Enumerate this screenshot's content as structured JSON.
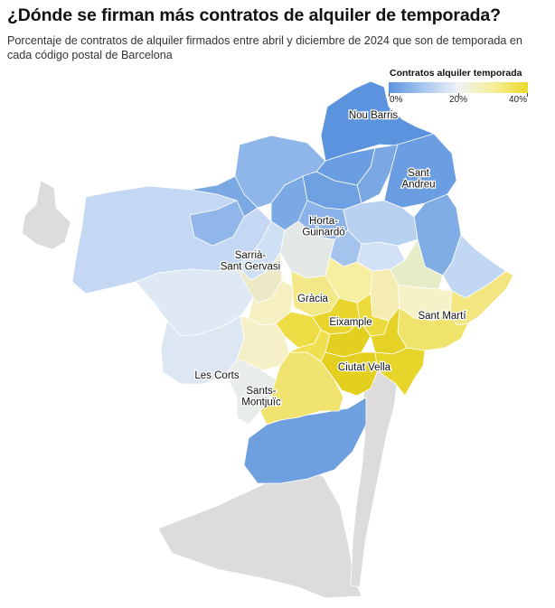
{
  "title": "¿Dónde se firman más contratos de alquiler de temporada?",
  "subtitle": "Porcentaje de contratos de alquiler firmados entre abril y diciembre de 2024 que son de temporada en cada código postal de Barcelona",
  "legend": {
    "title": "Contratos alquiler temporada",
    "labels": [
      "0%",
      "20%",
      "40%"
    ],
    "colors": [
      "#5b93df",
      "#eef2f6",
      "#ecd82a"
    ]
  },
  "districts": [
    {
      "name": "Nou Barris",
      "lines": [
        "Nou Barris"
      ]
    },
    {
      "name": "Sant Andreu",
      "lines": [
        "Sant",
        "Andreu"
      ]
    },
    {
      "name": "Horta-Guinardó",
      "lines": [
        "Horta-",
        "Guinardó"
      ]
    },
    {
      "name": "Sarrià-Sant Gervasi",
      "lines": [
        "Sarrià-",
        "Sant Gervasi"
      ]
    },
    {
      "name": "Gràcia",
      "lines": [
        "Gràcia"
      ]
    },
    {
      "name": "Eixample",
      "lines": [
        "Eixample"
      ]
    },
    {
      "name": "Sant Martí",
      "lines": [
        "Sant Martí"
      ]
    },
    {
      "name": "Les Corts",
      "lines": [
        "Les Corts"
      ]
    },
    {
      "name": "Ciutat Vella",
      "lines": [
        "Ciutat Vella"
      ]
    },
    {
      "name": "Sants-Montjuïc",
      "lines": [
        "Sants-",
        "Montjuïc"
      ]
    }
  ]
}
